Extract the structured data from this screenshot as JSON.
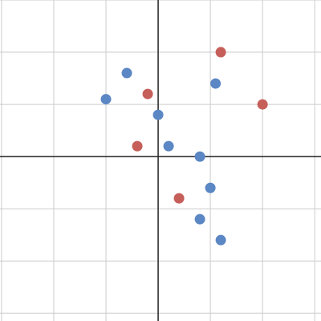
{
  "chart_data": {
    "type": "scatter",
    "xlim": [
      -3.03,
      3.12
    ],
    "ylim": [
      -3.15,
      3.0
    ],
    "xticks": [
      -3,
      -2,
      -1,
      0,
      1,
      2,
      3
    ],
    "yticks": [
      -3,
      -2,
      -1,
      0,
      1,
      2,
      3
    ],
    "grid": true,
    "series": [
      {
        "color": "#c65f5a",
        "x": [
          1.2,
          -0.2,
          2,
          -0.4,
          0.4
        ],
        "y": [
          2,
          1.2,
          1,
          0.2,
          -0.8
        ]
      },
      {
        "color": "#5b87c4",
        "x": [
          -0.6,
          -1,
          1.1,
          0,
          0.2,
          0.8,
          1,
          0.8,
          1.2
        ],
        "y": [
          1.6,
          1.1,
          1.4,
          0.8,
          0.2,
          0,
          -0.6,
          -1.2,
          -1.6
        ]
      }
    ]
  }
}
